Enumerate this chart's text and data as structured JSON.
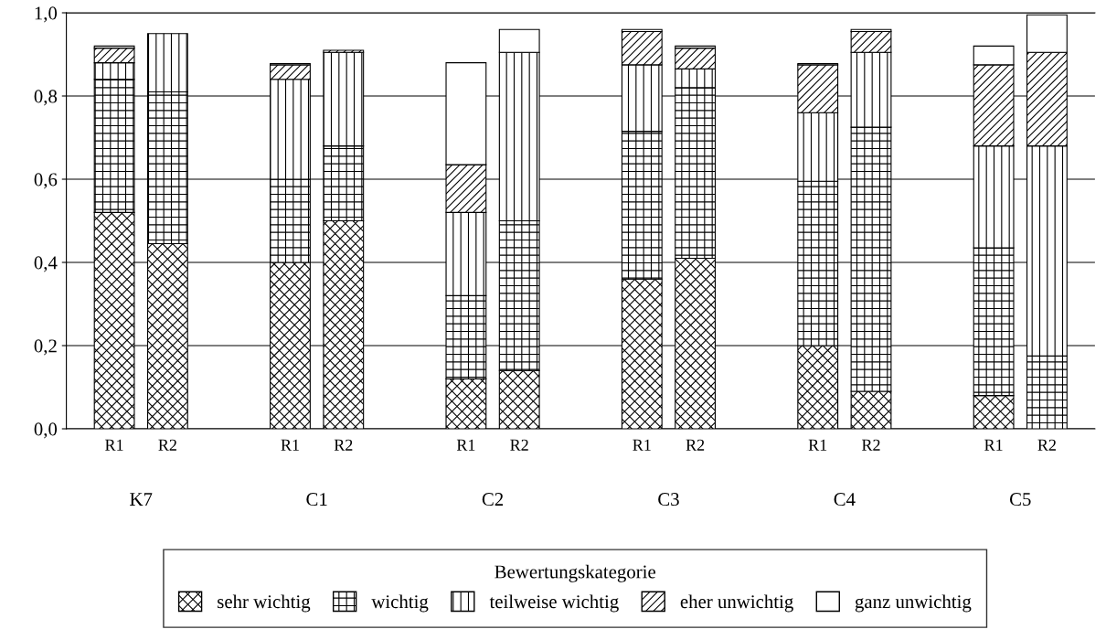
{
  "chart_data": {
    "type": "bar",
    "stacked": true,
    "categories": [
      "R1",
      "R2",
      "R1",
      "R2",
      "R1",
      "R2",
      "R1",
      "R2",
      "R1",
      "R2",
      "R1",
      "R2"
    ],
    "annotations": [
      "K7",
      "C1",
      "C2",
      "C3",
      "C4",
      "C5"
    ],
    "legend_title": "Bewertungskategorie",
    "legend": "bottom",
    "grid": "y",
    "ylim": [
      0,
      1.0
    ],
    "yticks": [
      {
        "value": 0,
        "label": "0,0"
      },
      {
        "value": 0.2,
        "label": "0,2"
      },
      {
        "value": 0.4,
        "label": "0,4"
      },
      {
        "value": 0.6,
        "label": "0,6"
      },
      {
        "value": 0.8,
        "label": "0,8"
      },
      {
        "value": 1.0,
        "label": "1,0"
      }
    ],
    "series": [
      {
        "name": "sehr wichtig",
        "color": "#000000",
        "values": [
          0.52,
          0.445,
          0.4,
          0.5,
          0.12,
          0.14,
          0.36,
          0.41,
          0.2,
          0.09,
          0.08,
          0
        ]
      },
      {
        "name": "wichtig",
        "color": "#000000",
        "values": [
          0.32,
          0.365,
          0.2,
          0.18,
          0.2,
          0.36,
          0.355,
          0.41,
          0.395,
          0.635,
          0.355,
          0.175
        ]
      },
      {
        "name": "teilweise wichtig",
        "color": "#000000",
        "values": [
          0.04,
          0.14,
          0.24,
          0.225,
          0.2,
          0.405,
          0.16,
          0.045,
          0.165,
          0.18,
          0.245,
          0.505
        ]
      },
      {
        "name": "eher unwichtig",
        "color": "#000000",
        "values": [
          0.035,
          0,
          0.035,
          0.005,
          0.115,
          0,
          0.08,
          0.05,
          0.115,
          0.05,
          0.195,
          0.225
        ]
      },
      {
        "name": "ganz unwichtig",
        "color": "#ffffff",
        "values": [
          0.005,
          0,
          0.003,
          0,
          0.245,
          0.055,
          0.005,
          0.005,
          0.003,
          0.005,
          0.045,
          0.09
        ]
      }
    ]
  }
}
